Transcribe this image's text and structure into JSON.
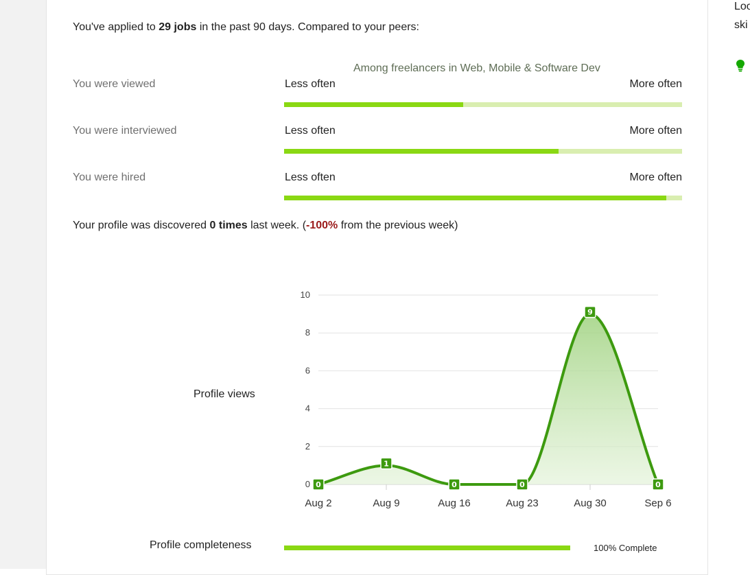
{
  "summary": {
    "prefix": "You've applied to ",
    "jobs": "29 jobs",
    "suffix": " in the past 90 days. Compared to your peers:"
  },
  "comparison": {
    "heading": "Among freelancers in Web, Mobile & Software Dev",
    "less_label": "Less often",
    "more_label": "More often",
    "rows": [
      {
        "label": "You were viewed",
        "fraction": 0.45
      },
      {
        "label": "You were interviewed",
        "fraction": 0.69
      },
      {
        "label": "You were hired",
        "fraction": 0.96
      }
    ]
  },
  "discovered": {
    "prefix": "Your profile was discovered ",
    "count": "0 times",
    "middle": " last week. (",
    "change": "-100%",
    "suffix": " from the previous week)"
  },
  "profile_views": {
    "label": "Profile views"
  },
  "chart_data": {
    "type": "area",
    "title": "",
    "xlabel": "",
    "ylabel": "",
    "x": [
      "Aug 2",
      "Aug 9",
      "Aug 16",
      "Aug 23",
      "Aug 30",
      "Sep 6"
    ],
    "series": [
      {
        "values": [
          0,
          1,
          0,
          0,
          9,
          0
        ]
      }
    ],
    "y_ticks": [
      "0",
      "2",
      "4",
      "6",
      "8",
      "10"
    ],
    "ylim": [
      0,
      10
    ],
    "grid": true,
    "data_labels": true,
    "line_color": "#3d9a0f",
    "label_color": "#3d9a0f"
  },
  "completeness": {
    "label": "Profile completeness",
    "value_text": "100% Complete",
    "fraction": 1.0
  },
  "right_panel": {
    "line1": "Loo",
    "line2": "ski",
    "bulb_icon": "lightbulb-icon",
    "bulb_color": "#14a800"
  },
  "colors": {
    "bar_fill": "#8ad813",
    "bar_track": "#d9eeb0",
    "negative": "#9b1a1a"
  }
}
